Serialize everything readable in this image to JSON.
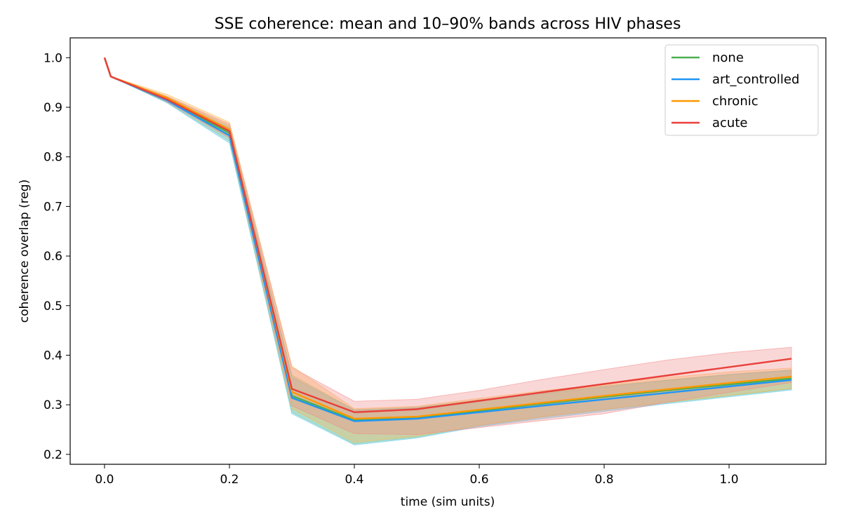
{
  "chart_data": {
    "type": "line",
    "title": "SSE coherence: mean and 10–90% bands across HIV phases",
    "xlabel": "time (sim units)",
    "ylabel": "coherence overlap (reg)",
    "xlim": [
      -0.055,
      1.155
    ],
    "ylim": [
      0.18,
      1.04
    ],
    "x_ticks": [
      "0.0",
      "0.2",
      "0.4",
      "0.6",
      "0.8",
      "1.0"
    ],
    "x_tick_values": [
      0.0,
      0.2,
      0.4,
      0.6,
      0.8,
      1.0
    ],
    "y_ticks": [
      "0.2",
      "0.3",
      "0.4",
      "0.5",
      "0.6",
      "0.7",
      "0.8",
      "0.9",
      "1.0"
    ],
    "y_tick_values": [
      0.2,
      0.3,
      0.4,
      0.5,
      0.6,
      0.7,
      0.8,
      0.9,
      1.0
    ],
    "grid": false,
    "legend_position": "top-right",
    "x": [
      0.0,
      0.01,
      0.1,
      0.2,
      0.3,
      0.4,
      0.5,
      0.6,
      0.7,
      0.8,
      0.9,
      1.0,
      1.1
    ],
    "series": [
      {
        "name": "none",
        "color": "#4caf50",
        "band_color": "#9ccc65",
        "values": [
          1.0,
          0.962,
          0.915,
          0.848,
          0.318,
          0.269,
          0.273,
          0.288,
          0.302,
          0.316,
          0.329,
          0.341,
          0.353
        ],
        "lower": [
          1.0,
          0.962,
          0.91,
          0.832,
          0.285,
          0.221,
          0.235,
          0.258,
          0.275,
          0.29,
          0.304,
          0.318,
          0.332
        ],
        "upper": [
          1.0,
          0.962,
          0.921,
          0.862,
          0.36,
          0.29,
          0.295,
          0.31,
          0.324,
          0.338,
          0.35,
          0.361,
          0.37
        ]
      },
      {
        "name": "art_controlled",
        "color": "#2196f3",
        "band_color": "#4fc3e8",
        "values": [
          1.0,
          0.962,
          0.914,
          0.843,
          0.314,
          0.267,
          0.272,
          0.285,
          0.298,
          0.311,
          0.324,
          0.337,
          0.35
        ],
        "lower": [
          1.0,
          0.962,
          0.909,
          0.828,
          0.282,
          0.219,
          0.233,
          0.256,
          0.272,
          0.287,
          0.302,
          0.316,
          0.33
        ],
        "upper": [
          1.0,
          0.962,
          0.919,
          0.858,
          0.356,
          0.289,
          0.294,
          0.308,
          0.322,
          0.336,
          0.349,
          0.361,
          0.37
        ]
      },
      {
        "name": "chronic",
        "color": "#ff9800",
        "band_color": "#ffb74d",
        "values": [
          1.0,
          0.962,
          0.919,
          0.855,
          0.326,
          0.272,
          0.276,
          0.29,
          0.304,
          0.318,
          0.331,
          0.344,
          0.357
        ],
        "lower": [
          1.0,
          0.962,
          0.914,
          0.84,
          0.292,
          0.224,
          0.237,
          0.259,
          0.276,
          0.291,
          0.305,
          0.319,
          0.333
        ],
        "upper": [
          1.0,
          0.962,
          0.926,
          0.87,
          0.378,
          0.292,
          0.297,
          0.313,
          0.328,
          0.342,
          0.355,
          0.366,
          0.374
        ]
      },
      {
        "name": "acute",
        "color": "#e8403a",
        "band_color": "#f28b8b",
        "values": [
          1.0,
          0.962,
          0.916,
          0.852,
          0.332,
          0.285,
          0.291,
          0.308,
          0.325,
          0.342,
          0.359,
          0.376,
          0.393
        ],
        "lower": [
          1.0,
          0.962,
          0.911,
          0.838,
          0.298,
          0.242,
          0.24,
          0.254,
          0.268,
          0.282,
          0.305,
          0.325,
          0.345
        ],
        "upper": [
          1.0,
          0.962,
          0.922,
          0.866,
          0.375,
          0.307,
          0.311,
          0.329,
          0.351,
          0.371,
          0.39,
          0.405,
          0.416
        ]
      }
    ]
  }
}
